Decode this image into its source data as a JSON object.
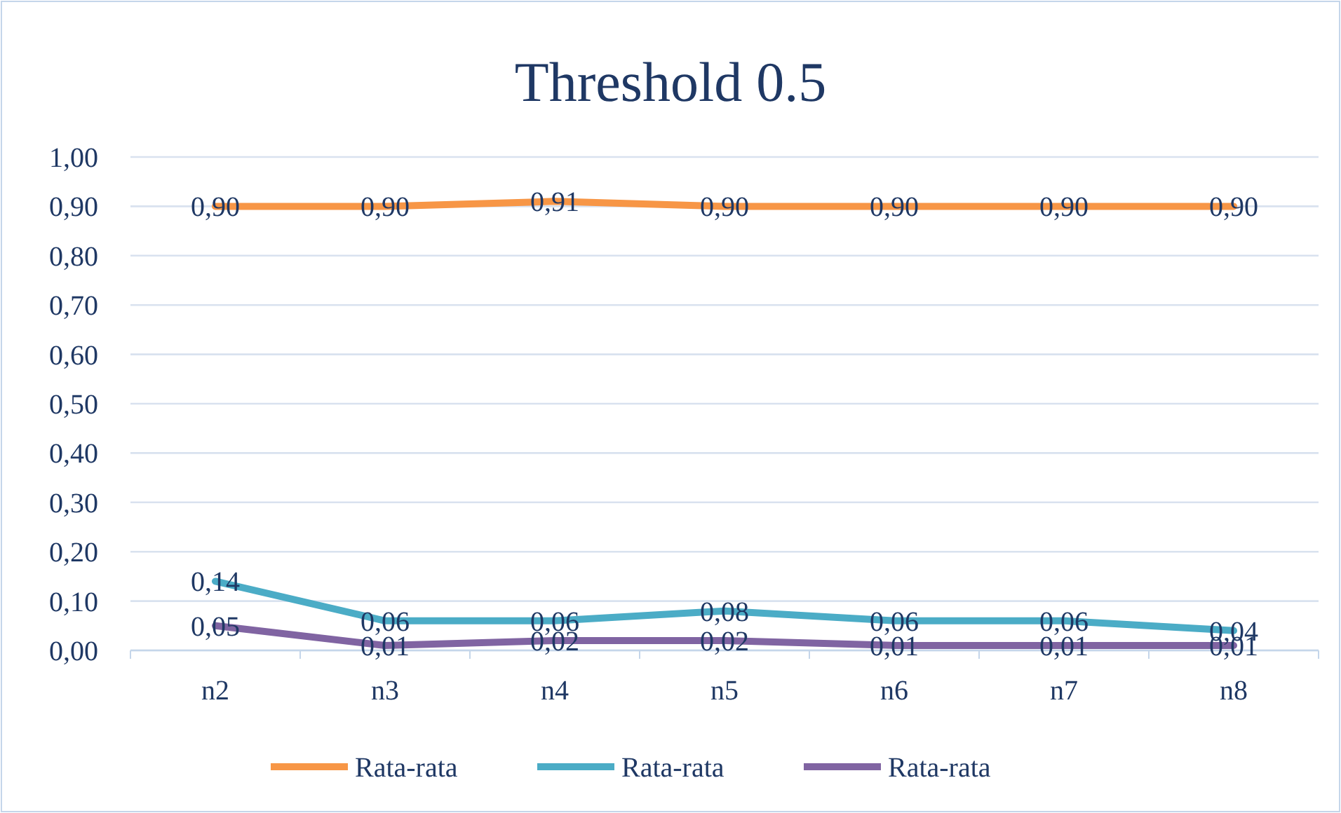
{
  "chart_data": {
    "type": "line",
    "title": "Threshold 0.5",
    "categories": [
      "n2",
      "n3",
      "n4",
      "n5",
      "n6",
      "n7",
      "n8"
    ],
    "series": [
      {
        "name": "Rata-rata",
        "color": "#f79646",
        "values": [
          0.9,
          0.9,
          0.91,
          0.9,
          0.9,
          0.9,
          0.9
        ],
        "value_labels": [
          "0,90",
          "0,90",
          "0,91",
          "0,90",
          "0,90",
          "0,90",
          "0,90"
        ]
      },
      {
        "name": "Rata-rata",
        "color": "#4bacc6",
        "values": [
          0.14,
          0.06,
          0.06,
          0.08,
          0.06,
          0.06,
          0.04
        ],
        "value_labels": [
          "0,14",
          "0,06",
          "0,06",
          "0,08",
          "0,06",
          "0,06",
          "0,04"
        ]
      },
      {
        "name": "Rata-rata",
        "color": "#8064a2",
        "values": [
          0.05,
          0.01,
          0.02,
          0.02,
          0.01,
          0.01,
          0.01
        ],
        "value_labels": [
          "0,05",
          "0,01",
          "0,02",
          "0,02",
          "0,01",
          "0,01",
          "0,01"
        ]
      }
    ],
    "ylim": [
      0,
      1
    ],
    "yticks": [
      {
        "value": 0,
        "label": "0,00"
      },
      {
        "value": 0.1,
        "label": "0,10"
      },
      {
        "value": 0.2,
        "label": "0,20"
      },
      {
        "value": 0.3,
        "label": "0,30"
      },
      {
        "value": 0.4,
        "label": "0,40"
      },
      {
        "value": 0.5,
        "label": "0,50"
      },
      {
        "value": 0.6,
        "label": "0,60"
      },
      {
        "value": 0.7,
        "label": "0,70"
      },
      {
        "value": 0.8,
        "label": "0,80"
      },
      {
        "value": 0.9,
        "label": "0,90"
      },
      {
        "value": 1,
        "label": "1,00"
      }
    ],
    "grid": "y",
    "legend": "bottom",
    "marker": "none",
    "line_style": "solid"
  }
}
